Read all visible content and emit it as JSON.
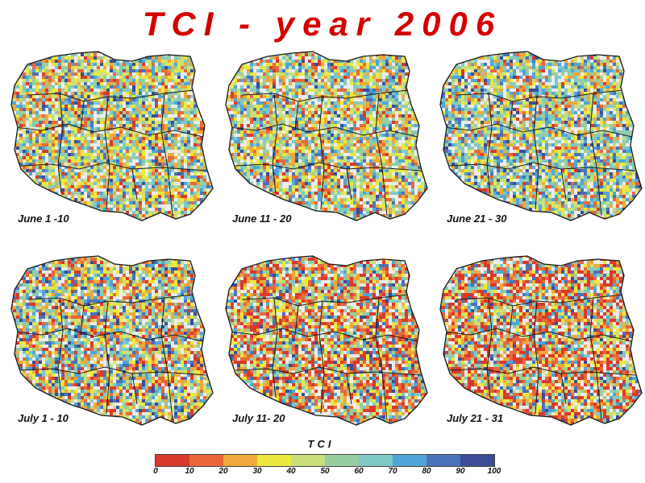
{
  "title": "TCI - year 2006",
  "maps": [
    {
      "label": "June 1 -10",
      "palette_weights": [
        0.05,
        0.1,
        0.14,
        0.17,
        0.12,
        0.12,
        0.12,
        0.1,
        0.05,
        0.03
      ],
      "seed": 11
    },
    {
      "label": "June 11 - 20",
      "palette_weights": [
        0.05,
        0.1,
        0.13,
        0.16,
        0.13,
        0.12,
        0.12,
        0.1,
        0.06,
        0.03
      ],
      "seed": 23
    },
    {
      "label": "June 21 - 30",
      "palette_weights": [
        0.04,
        0.07,
        0.11,
        0.13,
        0.12,
        0.13,
        0.14,
        0.14,
        0.08,
        0.04
      ],
      "seed": 37
    },
    {
      "label": "July 1 - 10",
      "palette_weights": [
        0.08,
        0.12,
        0.14,
        0.14,
        0.1,
        0.1,
        0.1,
        0.1,
        0.07,
        0.05
      ],
      "seed": 41
    },
    {
      "label": "July 11- 20",
      "palette_weights": [
        0.2,
        0.16,
        0.13,
        0.11,
        0.08,
        0.08,
        0.08,
        0.07,
        0.05,
        0.04
      ],
      "seed": 53
    },
    {
      "label": "July 21 - 31",
      "palette_weights": [
        0.24,
        0.15,
        0.12,
        0.1,
        0.08,
        0.08,
        0.08,
        0.07,
        0.05,
        0.03
      ],
      "seed": 67
    }
  ],
  "legend": {
    "title": "TCI",
    "ticks": [
      "0",
      "10",
      "20",
      "30",
      "40",
      "50",
      "60",
      "70",
      "80",
      "90",
      "100"
    ],
    "colors": [
      "#d93a2b",
      "#e8683a",
      "#efa93a",
      "#ece83e",
      "#c9df7a",
      "#98cfa0",
      "#7ec9c6",
      "#4ea6d8",
      "#4a72b8",
      "#3b4d97"
    ]
  },
  "colors": {
    "title": "#d40000",
    "map_background": "#ececec",
    "border": "#1a1a1a"
  }
}
